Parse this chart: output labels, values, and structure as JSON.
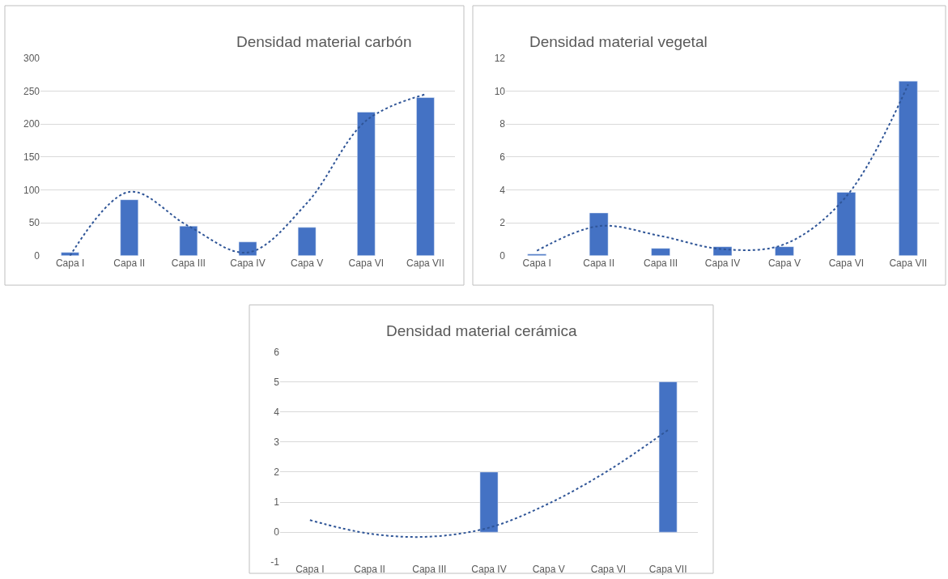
{
  "chart_data": [
    {
      "type": "bar",
      "title": "Densidad material carbón",
      "categories": [
        "Capa I",
        "Capa II",
        "Capa III",
        "Capa IV",
        "Capa V",
        "Capa VI",
        "Capa VII"
      ],
      "series": [
        {
          "color": "#4472c4",
          "values": [
            5,
            85,
            45,
            21,
            43,
            218,
            240
          ]
        },
        {
          "type": "line",
          "color": "#2f5597",
          "line_style": "dotted",
          "x": [
            "Capa I",
            "Capa II",
            "Capa III",
            "Capa IV",
            "Capa V",
            "Capa VI",
            "Capa VII"
          ],
          "values": [
            0,
            97,
            45,
            5,
            80,
            205,
            245
          ]
        }
      ],
      "ylim": [
        0,
        300
      ],
      "yticks": [
        0,
        50,
        100,
        150,
        200,
        250,
        300
      ],
      "grid": "y"
    },
    {
      "type": "bar",
      "title": "Densidad material vegetal",
      "categories": [
        "Capa I",
        "Capa II",
        "Capa III",
        "Capa IV",
        "Capa V",
        "Capa VI",
        "Capa VII"
      ],
      "series": [
        {
          "color": "#4472c4",
          "values": [
            0.1,
            2.6,
            0.45,
            0.55,
            0.55,
            3.85,
            10.6
          ]
        },
        {
          "type": "line",
          "color": "#2f5597",
          "line_style": "dotted",
          "x": [
            "Capa I",
            "Capa II",
            "Capa III",
            "Capa IV",
            "Capa V",
            "Capa VI",
            "Capa VII"
          ],
          "values": [
            0.3,
            1.8,
            1.2,
            0.4,
            0.7,
            3.6,
            10.4
          ]
        }
      ],
      "ylim": [
        0,
        12
      ],
      "yticks": [
        0,
        2,
        4,
        6,
        8,
        10,
        12
      ],
      "grid": "y"
    },
    {
      "type": "bar",
      "title": "Densidad material cerámica",
      "categories": [
        "Capa I",
        "Capa II",
        "Capa III",
        "Capa IV",
        "Capa V",
        "Capa VI",
        "Capa VII"
      ],
      "series": [
        {
          "color": "#4472c4",
          "values": [
            null,
            null,
            null,
            2,
            null,
            null,
            5
          ]
        },
        {
          "type": "line",
          "color": "#2f5597",
          "line_style": "dotted",
          "x": [
            "Capa I",
            "Capa II",
            "Capa III",
            "Capa IV",
            "Capa V",
            "Capa VI",
            "Capa VII"
          ],
          "values": [
            0.4,
            -0.05,
            -0.15,
            0.15,
            0.95,
            2.05,
            3.4
          ]
        }
      ],
      "ylim": [
        -1,
        6
      ],
      "yticks": [
        -1,
        0,
        1,
        2,
        3,
        4,
        5,
        6
      ],
      "grid": "y"
    }
  ]
}
